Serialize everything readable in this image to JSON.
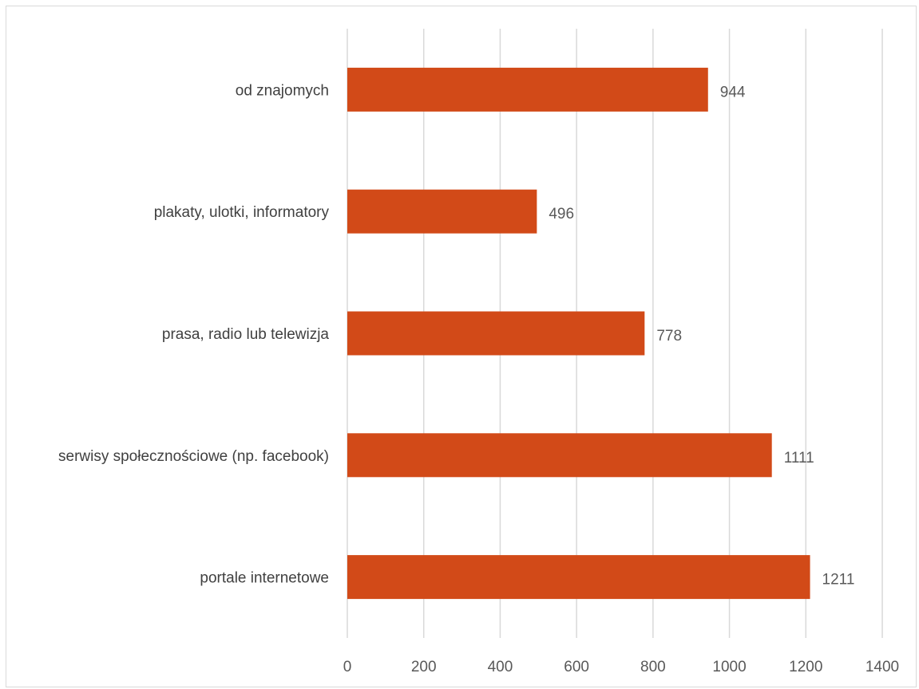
{
  "chart_data": {
    "type": "bar",
    "orientation": "horizontal",
    "categories": [
      "od znajomych",
      "plakaty, ulotki, informatory",
      "prasa, radio lub telewizja",
      "serwisy społecznościowe (np. facebook)",
      "portale internetowe"
    ],
    "values": [
      944,
      496,
      778,
      1111,
      1211
    ],
    "data_labels": [
      "944",
      "496",
      "778",
      "1111",
      "1211"
    ],
    "title": "",
    "xlabel": "",
    "ylabel": "",
    "xlim": [
      0,
      1400
    ],
    "x_ticks": [
      "0",
      "200",
      "400",
      "600",
      "800",
      "1000",
      "1200",
      "1400"
    ],
    "grid": true,
    "legend": "none",
    "colors": {
      "bar": "#d24a18",
      "grid": "#d9d9d9",
      "frame": "#d9d9d9"
    }
  }
}
